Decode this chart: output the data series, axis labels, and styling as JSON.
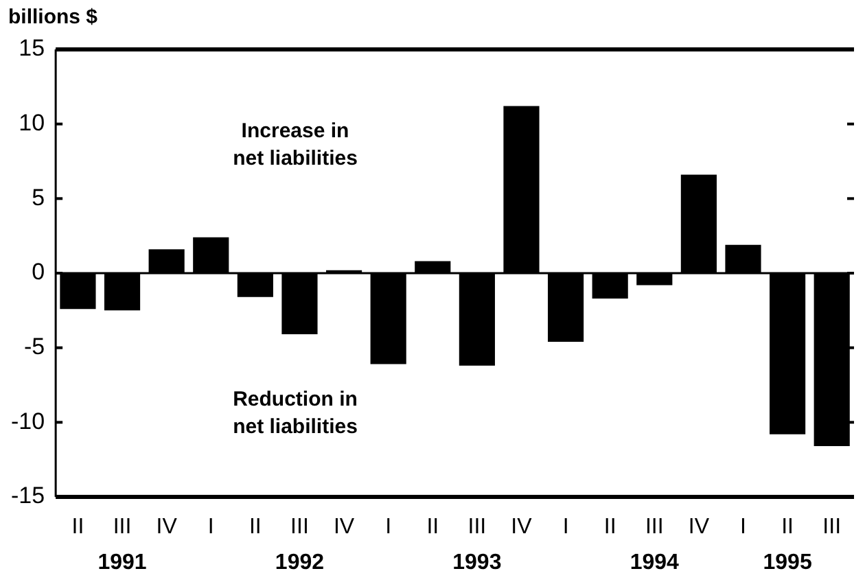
{
  "chart_data": {
    "type": "bar",
    "ylabel": "billions $",
    "categories": [
      "II",
      "III\n1991",
      "IV",
      "I",
      "II",
      "III\n1992",
      "IV",
      "I",
      "II",
      "III\n1993",
      "IV",
      "I",
      "II",
      "III\n1994",
      "IV",
      "I",
      "II\n1995",
      "III"
    ],
    "values": [
      -2.4,
      -2.5,
      1.6,
      2.4,
      -1.6,
      -4.1,
      0.2,
      -6.1,
      0.8,
      -6.2,
      11.2,
      -4.6,
      -1.7,
      -0.8,
      6.6,
      1.9,
      -10.8,
      -11.6
    ],
    "color": "#000000",
    "ylim": [
      -15,
      15
    ],
    "yticks": [
      -15,
      -10,
      -5,
      0,
      5,
      10,
      15
    ],
    "annotations": [
      "Increase in\nnet liabilities",
      "Reduction in\nnet liabilities"
    ]
  }
}
